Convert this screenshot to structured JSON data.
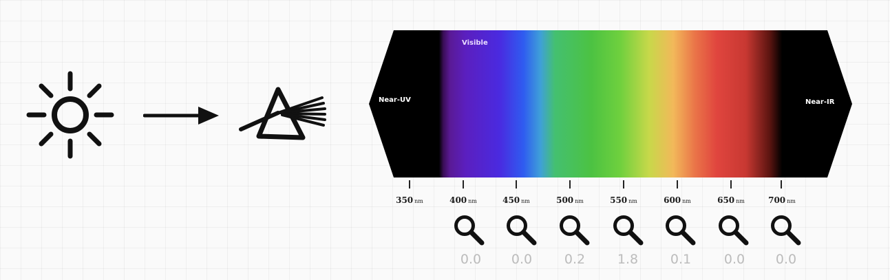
{
  "spectrum": {
    "left_label": "Near-UV",
    "visible_label": "Visible",
    "right_label": "Near-IR"
  },
  "axis": {
    "unit": "nm",
    "ticks": [
      "350",
      "400",
      "450",
      "500",
      "550",
      "600",
      "650",
      "700"
    ]
  },
  "readings": [
    "0.0",
    "0.0",
    "0.2",
    "1.8",
    "0.1",
    "0.0",
    "0.0"
  ],
  "icons": {
    "source": "sun-icon",
    "arrow": "right-arrow-icon",
    "prism": "prism-icon",
    "detector": "magnifier-icon"
  }
}
